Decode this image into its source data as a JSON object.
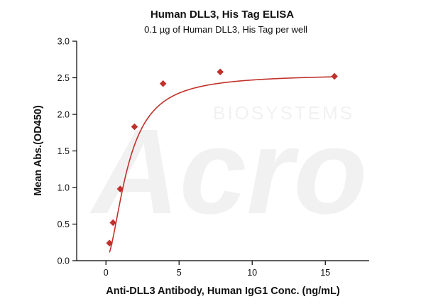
{
  "chart_data": {
    "type": "scatter",
    "title": "Human DLL3, His Tag ELISA",
    "subtitle": "0.1 µg of Human DLL3, His Tag per well",
    "xlabel": "Anti-DLL3 Antibody, Human IgG1 Conc. (ng/mL)",
    "ylabel": "Mean Abs.(OD450)",
    "xlim": [
      -2,
      18
    ],
    "ylim": [
      0,
      3.0
    ],
    "xticks": [
      0,
      5,
      10,
      15
    ],
    "xtick_labels": [
      "0",
      "5",
      "10",
      "15"
    ],
    "yticks": [
      0,
      0.5,
      1.0,
      1.5,
      2.0,
      2.5,
      3.0
    ],
    "ytick_labels": [
      "0.0",
      "0.5",
      "1.0",
      "1.5",
      "2.0",
      "2.5",
      "3.0"
    ],
    "grid": false,
    "marker": "diamond",
    "series": [
      {
        "x": [
          0.244,
          0.488,
          0.977,
          1.953,
          3.906,
          7.813,
          15.625
        ],
        "y": [
          0.24,
          0.52,
          0.98,
          1.83,
          2.42,
          2.58,
          2.52
        ]
      }
    ],
    "fit_curve": {
      "model": "4PL",
      "bottom": 0.02,
      "top": 2.55,
      "ec50": 1.5,
      "hill": 1.8
    },
    "colors": {
      "series": "#c0312b",
      "axis": "#000000"
    }
  },
  "watermark": {
    "brand": "Acro",
    "sub": "BIOSYSTEMS"
  }
}
